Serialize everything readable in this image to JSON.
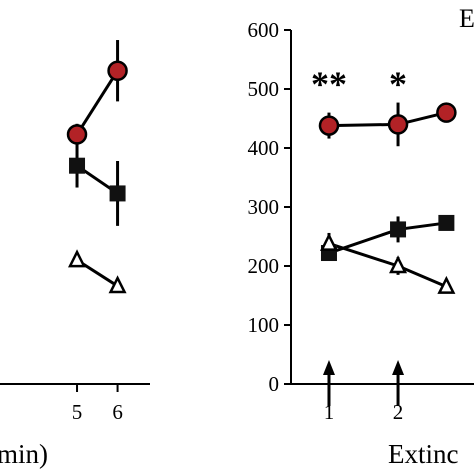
{
  "colors": {
    "circle_fill": "#b22226",
    "square_fill": "#111111",
    "triangle_fill": "#ffffff",
    "ink": "#000000"
  },
  "chart_data": [
    {
      "type": "line",
      "panel": "left (cropped)",
      "x_tick_labels": [
        "5",
        "6"
      ],
      "x_ticks": [
        5,
        6
      ],
      "xlim": [
        3.1,
        6.8
      ],
      "ylim": [
        0,
        600
      ],
      "xlabel": "min)",
      "series": [
        {
          "marker": "circle",
          "x": [
            5,
            6
          ],
          "y": [
            423,
            531
          ],
          "err": [
            18,
            52
          ]
        },
        {
          "marker": "square",
          "x": [
            5,
            6
          ],
          "y": [
            370,
            323
          ],
          "err": [
            37,
            55
          ]
        },
        {
          "marker": "triangle-open",
          "x": [
            5,
            6
          ],
          "y": [
            210,
            166
          ],
          "err": [
            8,
            10
          ]
        }
      ]
    },
    {
      "type": "line",
      "panel": "right (cropped)",
      "panel_letter": "E",
      "x_tick_labels": [
        "1",
        "2"
      ],
      "x_ticks": [
        1,
        2
      ],
      "xlim": [
        0.45,
        3.1
      ],
      "ylim": [
        0,
        600
      ],
      "y_ticks": [
        0,
        100,
        200,
        300,
        400,
        500,
        600
      ],
      "xlabel": "Extinc",
      "series": [
        {
          "marker": "circle",
          "x": [
            1,
            2,
            2.7
          ],
          "y": [
            438,
            440,
            460
          ],
          "err": [
            22,
            37,
            0
          ]
        },
        {
          "marker": "square",
          "x": [
            1,
            2,
            2.7
          ],
          "y": [
            222,
            262,
            273
          ],
          "err": [
            12,
            22,
            0
          ]
        },
        {
          "marker": "triangle-open",
          "x": [
            1,
            2,
            2.7
          ],
          "y": [
            238,
            200,
            165
          ],
          "err": [
            18,
            15,
            0
          ]
        }
      ],
      "annotations": [
        {
          "text": "**",
          "x": 1,
          "y": 510
        },
        {
          "text": "*",
          "x": 2,
          "y": 510
        }
      ],
      "arrows_at_x": [
        1,
        2
      ]
    }
  ]
}
